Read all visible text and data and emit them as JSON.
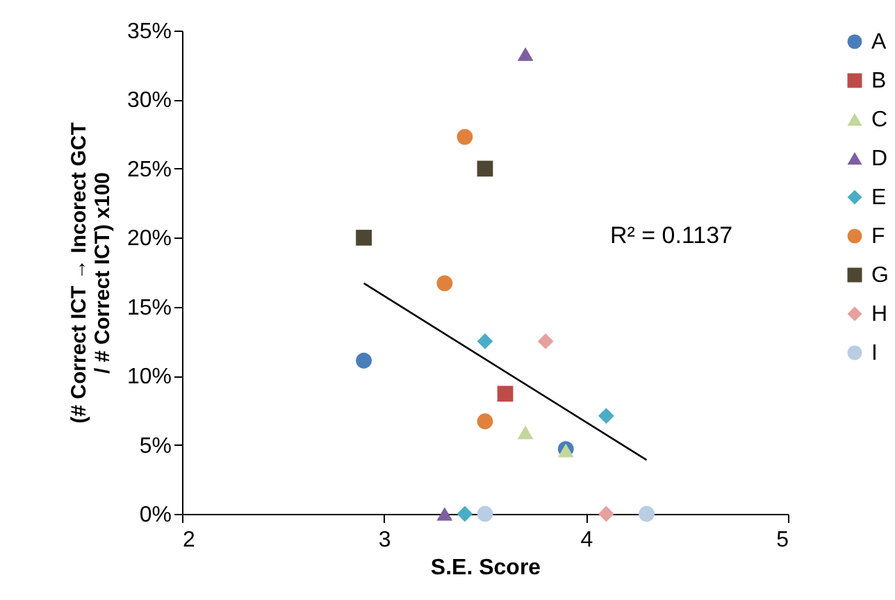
{
  "chart_data": {
    "type": "scatter",
    "xlabel": "S.E. Score",
    "ylabel": "(# Correct ICT → Incorect GCT\n/ # Correct ICT) x100",
    "xlim": [
      2,
      5
    ],
    "xticks": [
      2,
      3,
      4,
      5
    ],
    "ylim": [
      0,
      35
    ],
    "yticks": [
      {
        "value": 0,
        "label": "0%"
      },
      {
        "value": 5,
        "label": "5%"
      },
      {
        "value": 10,
        "label": "10%"
      },
      {
        "value": 15,
        "label": "15%"
      },
      {
        "value": 20,
        "label": "20%"
      },
      {
        "value": 25,
        "label": "25%"
      },
      {
        "value": 30,
        "label": "30%"
      },
      {
        "value": 35,
        "label": "35%"
      }
    ],
    "grid": false,
    "legend": "right",
    "annotations": [
      "R² = 0.1137"
    ],
    "series": [
      {
        "name": "A",
        "color": "#4a7ebb",
        "marker": "circle",
        "x": [
          2.9,
          3.9
        ],
        "values": [
          11.1,
          4.7
        ]
      },
      {
        "name": "B",
        "color": "#be4b48",
        "marker": "square",
        "x": [
          3.6
        ],
        "values": [
          8.7
        ]
      },
      {
        "name": "C",
        "color": "#c3d69b",
        "marker": "triangle",
        "x": [
          3.7,
          3.9
        ],
        "values": [
          5.9,
          4.6
        ]
      },
      {
        "name": "D",
        "color": "#7d60a0",
        "marker": "triangle",
        "x": [
          3.7,
          3.3
        ],
        "values": [
          33.3,
          0
        ]
      },
      {
        "name": "E",
        "color": "#4bacc6",
        "marker": "diamond",
        "x": [
          3.5,
          4.1,
          3.4
        ],
        "values": [
          12.5,
          7.1,
          0
        ]
      },
      {
        "name": "F",
        "color": "#e0823d",
        "marker": "circle",
        "x": [
          3.4,
          3.3,
          3.5
        ],
        "values": [
          27.3,
          16.7,
          6.7
        ]
      },
      {
        "name": "G",
        "color": "#4d4731",
        "marker": "square",
        "x": [
          2.9,
          3.5
        ],
        "values": [
          20,
          25
        ]
      },
      {
        "name": "H",
        "color": "#e6a09e",
        "marker": "diamond",
        "x": [
          3.8,
          4.1
        ],
        "values": [
          12.5,
          0
        ]
      },
      {
        "name": "I",
        "color": "#b9cde5",
        "marker": "circle",
        "x": [
          3.5,
          4.3
        ],
        "values": [
          0,
          0
        ]
      },
      {
        "type": "line",
        "color": "#000000",
        "x": [
          2.9,
          4.3
        ],
        "values": [
          16.7,
          3.9
        ]
      }
    ]
  }
}
